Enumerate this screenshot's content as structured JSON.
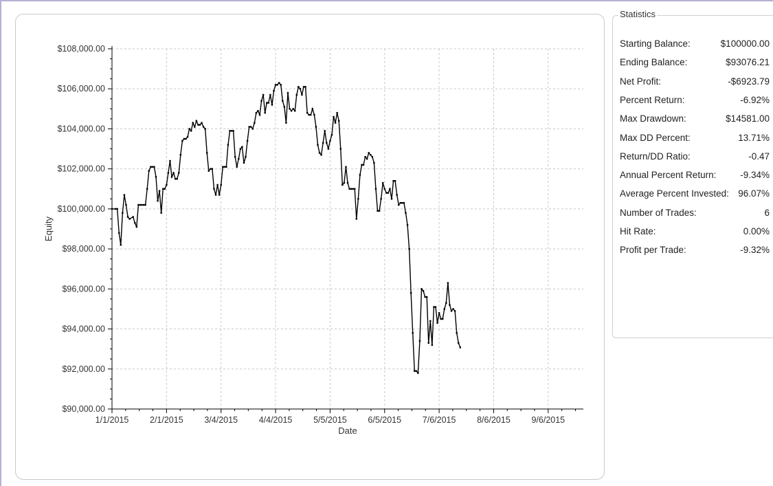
{
  "chart_data": {
    "type": "line",
    "xlabel": "Date",
    "ylabel": "Equity",
    "ylim": [
      90000,
      108000
    ],
    "y_ticks": [
      "$90,000.00",
      "$92,000.00",
      "$94,000.00",
      "$96,000.00",
      "$98,000.00",
      "$100,000.00",
      "$102,000.00",
      "$104,000.00",
      "$106,000.00",
      "$108,000.00"
    ],
    "y_tick_values": [
      90000,
      92000,
      94000,
      96000,
      98000,
      100000,
      102000,
      104000,
      106000,
      108000
    ],
    "x_tick_labels": [
      "1/1/2015",
      "2/1/2015",
      "3/4/2015",
      "4/4/2015",
      "5/5/2015",
      "6/5/2015",
      "7/6/2015",
      "8/6/2015",
      "9/6/2015"
    ],
    "x_tick_days": [
      0,
      31,
      62,
      93,
      124,
      155,
      186,
      217,
      248
    ],
    "xlim_days": [
      0,
      268
    ],
    "grid": true,
    "line_color": "#000000",
    "series": [
      {
        "points": [
          [
            0,
            100000
          ],
          [
            2,
            100000
          ],
          [
            3,
            100000
          ],
          [
            4,
            98800
          ],
          [
            5,
            98200
          ],
          [
            6,
            99800
          ],
          [
            7,
            100700
          ],
          [
            8,
            100200
          ],
          [
            9,
            99600
          ],
          [
            10,
            99500
          ],
          [
            12,
            99600
          ],
          [
            13,
            99300
          ],
          [
            14,
            99100
          ],
          [
            15,
            100200
          ],
          [
            16,
            100200
          ],
          [
            17,
            100200
          ],
          [
            18,
            100200
          ],
          [
            19,
            100200
          ],
          [
            20,
            101000
          ],
          [
            21,
            101900
          ],
          [
            22,
            102100
          ],
          [
            23,
            102100
          ],
          [
            24,
            102100
          ],
          [
            25,
            101600
          ],
          [
            26,
            100400
          ],
          [
            27,
            100900
          ],
          [
            28,
            99800
          ],
          [
            29,
            101000
          ],
          [
            30,
            101000
          ],
          [
            31,
            101200
          ],
          [
            32,
            101800
          ],
          [
            33,
            102400
          ],
          [
            34,
            101600
          ],
          [
            35,
            101800
          ],
          [
            36,
            101500
          ],
          [
            37,
            101500
          ],
          [
            38,
            101800
          ],
          [
            39,
            102700
          ],
          [
            40,
            103400
          ],
          [
            41,
            103500
          ],
          [
            42,
            103500
          ],
          [
            43,
            103600
          ],
          [
            44,
            104000
          ],
          [
            45,
            103900
          ],
          [
            46,
            104300
          ],
          [
            47,
            104100
          ],
          [
            48,
            104400
          ],
          [
            49,
            104200
          ],
          [
            50,
            104200
          ],
          [
            51,
            104300
          ],
          [
            52,
            104100
          ],
          [
            53,
            104000
          ],
          [
            54,
            102800
          ],
          [
            55,
            101900
          ],
          [
            56,
            102000
          ],
          [
            57,
            102000
          ],
          [
            58,
            101000
          ],
          [
            59,
            100700
          ],
          [
            60,
            101200
          ],
          [
            61,
            100700
          ],
          [
            62,
            101200
          ],
          [
            63,
            102100
          ],
          [
            64,
            102100
          ],
          [
            65,
            102100
          ],
          [
            66,
            103200
          ],
          [
            67,
            103900
          ],
          [
            68,
            103900
          ],
          [
            69,
            103900
          ],
          [
            70,
            102600
          ],
          [
            71,
            102100
          ],
          [
            72,
            102500
          ],
          [
            73,
            103000
          ],
          [
            74,
            103100
          ],
          [
            75,
            102300
          ],
          [
            76,
            102600
          ],
          [
            77,
            103400
          ],
          [
            78,
            104100
          ],
          [
            79,
            104100
          ],
          [
            80,
            104000
          ],
          [
            81,
            104300
          ],
          [
            82,
            104800
          ],
          [
            83,
            104900
          ],
          [
            84,
            104700
          ],
          [
            85,
            105400
          ],
          [
            86,
            105700
          ],
          [
            87,
            104800
          ],
          [
            88,
            105300
          ],
          [
            89,
            105300
          ],
          [
            90,
            105700
          ],
          [
            91,
            105200
          ],
          [
            92,
            105900
          ],
          [
            93,
            106200
          ],
          [
            94,
            106200
          ],
          [
            95,
            106300
          ],
          [
            96,
            106200
          ],
          [
            97,
            105400
          ],
          [
            98,
            105100
          ],
          [
            99,
            104300
          ],
          [
            100,
            105800
          ],
          [
            101,
            105000
          ],
          [
            102,
            104900
          ],
          [
            103,
            105000
          ],
          [
            104,
            104900
          ],
          [
            105,
            105700
          ],
          [
            106,
            106100
          ],
          [
            107,
            106000
          ],
          [
            108,
            105700
          ],
          [
            109,
            106100
          ],
          [
            110,
            106100
          ],
          [
            111,
            104800
          ],
          [
            112,
            104700
          ],
          [
            113,
            104700
          ],
          [
            114,
            105000
          ],
          [
            115,
            104700
          ],
          [
            116,
            104100
          ],
          [
            117,
            103200
          ],
          [
            118,
            102800
          ],
          [
            119,
            102700
          ],
          [
            120,
            103300
          ],
          [
            121,
            103900
          ],
          [
            122,
            103300
          ],
          [
            123,
            103000
          ],
          [
            124,
            103400
          ],
          [
            125,
            103700
          ],
          [
            126,
            104600
          ],
          [
            127,
            104300
          ],
          [
            128,
            104800
          ],
          [
            129,
            104400
          ],
          [
            130,
            103000
          ],
          [
            131,
            101200
          ],
          [
            132,
            101300
          ],
          [
            133,
            102100
          ],
          [
            134,
            101300
          ],
          [
            135,
            101000
          ],
          [
            136,
            101000
          ],
          [
            137,
            101000
          ],
          [
            138,
            101000
          ],
          [
            139,
            99500
          ],
          [
            140,
            100500
          ],
          [
            141,
            101700
          ],
          [
            142,
            102200
          ],
          [
            143,
            102200
          ],
          [
            144,
            102600
          ],
          [
            145,
            102500
          ],
          [
            146,
            102800
          ],
          [
            147,
            102700
          ],
          [
            148,
            102600
          ],
          [
            149,
            102300
          ],
          [
            150,
            101000
          ],
          [
            151,
            99900
          ],
          [
            152,
            99900
          ],
          [
            153,
            100500
          ],
          [
            154,
            101300
          ],
          [
            155,
            101000
          ],
          [
            156,
            100800
          ],
          [
            157,
            100800
          ],
          [
            158,
            101000
          ],
          [
            159,
            100500
          ],
          [
            160,
            101400
          ],
          [
            161,
            101400
          ],
          [
            162,
            100700
          ],
          [
            163,
            100200
          ],
          [
            164,
            100300
          ],
          [
            165,
            100300
          ],
          [
            166,
            100300
          ],
          [
            167,
            99800
          ],
          [
            168,
            99200
          ],
          [
            169,
            98000
          ],
          [
            170,
            95800
          ],
          [
            171,
            93800
          ],
          [
            172,
            91900
          ],
          [
            173,
            91900
          ],
          [
            174,
            91800
          ],
          [
            175,
            93400
          ],
          [
            176,
            96000
          ],
          [
            177,
            95900
          ],
          [
            178,
            95600
          ],
          [
            179,
            95600
          ],
          [
            180,
            93300
          ],
          [
            181,
            94400
          ],
          [
            182,
            93200
          ],
          [
            183,
            95100
          ],
          [
            184,
            95100
          ],
          [
            185,
            94300
          ],
          [
            186,
            94800
          ],
          [
            187,
            94500
          ],
          [
            188,
            94500
          ],
          [
            189,
            95000
          ],
          [
            190,
            95300
          ],
          [
            191,
            96300
          ],
          [
            192,
            95200
          ],
          [
            193,
            94900
          ],
          [
            194,
            95000
          ],
          [
            195,
            94900
          ],
          [
            196,
            93800
          ],
          [
            197,
            93300
          ],
          [
            198,
            93076.21
          ]
        ]
      }
    ]
  },
  "stats": {
    "title": "Statistics",
    "rows": [
      {
        "label": "Starting Balance:",
        "value": "$100000.00"
      },
      {
        "label": "Ending Balance:",
        "value": "$93076.21"
      },
      {
        "label": "Net Profit:",
        "value": "-$6923.79"
      },
      {
        "label": "Percent Return:",
        "value": "-6.92%"
      },
      {
        "label": "Max Drawdown:",
        "value": "$14581.00"
      },
      {
        "label": "Max DD Percent:",
        "value": "13.71%"
      },
      {
        "label": "Return/DD Ratio:",
        "value": "-0.47"
      },
      {
        "label": "Annual Percent Return:",
        "value": "-9.34%"
      },
      {
        "label": "Average Percent Invested:",
        "value": "96.07%"
      },
      {
        "label": "Number of Trades:",
        "value": "6"
      },
      {
        "label": "Hit Rate:",
        "value": "0.00%"
      },
      {
        "label": "Profit per Trade:",
        "value": "-9.32%"
      }
    ]
  }
}
